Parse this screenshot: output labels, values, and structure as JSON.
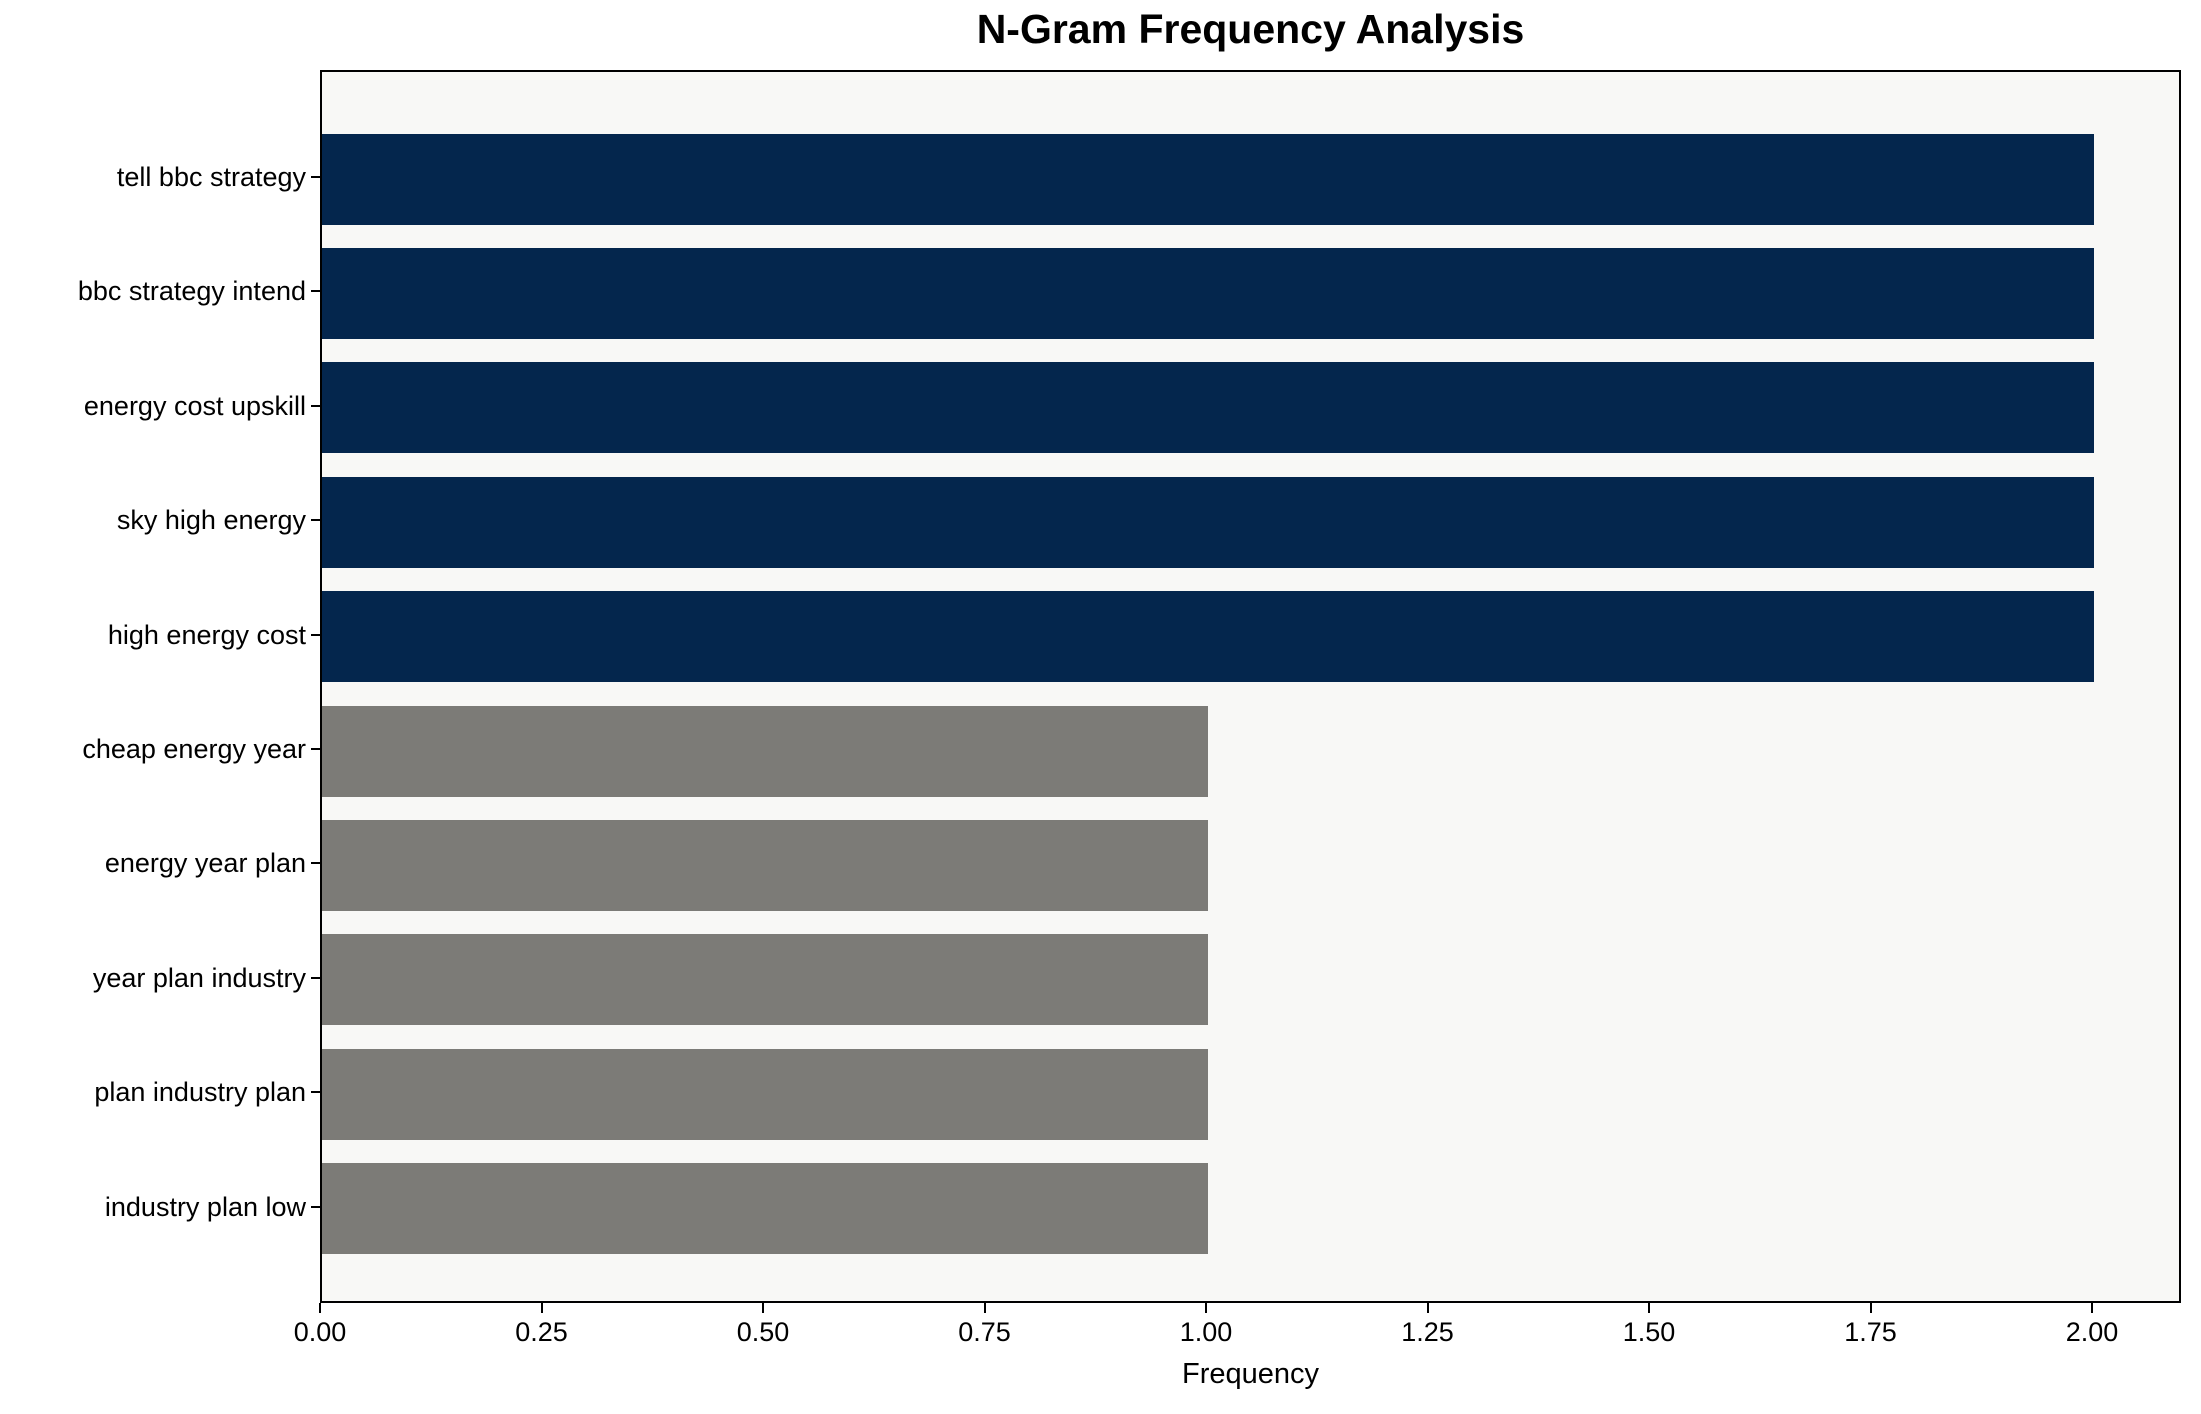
{
  "chart_data": {
    "type": "bar",
    "orientation": "horizontal",
    "title": "N-Gram Frequency Analysis",
    "xlabel": "Frequency",
    "categories": [
      "tell bbc strategy",
      "bbc strategy intend",
      "energy cost upskill",
      "sky high energy",
      "high energy cost",
      "cheap energy year",
      "energy year plan",
      "year plan industry",
      "plan industry plan",
      "industry plan low"
    ],
    "values": [
      2,
      2,
      2,
      2,
      2,
      1,
      1,
      1,
      1,
      1
    ],
    "bar_colors": [
      "#04264d",
      "#04264d",
      "#04264d",
      "#04264d",
      "#04264d",
      "#7c7b77",
      "#7c7b77",
      "#7c7b77",
      "#7c7b77",
      "#7c7b77"
    ],
    "xticks": [
      "0.00",
      "0.25",
      "0.50",
      "0.75",
      "1.00",
      "1.25",
      "1.50",
      "1.75",
      "2.00"
    ],
    "xlim": [
      0,
      2.1
    ],
    "grid": false,
    "legend": "none",
    "plot_background": "#f8f8f6",
    "figure_background": "#ffffff"
  }
}
